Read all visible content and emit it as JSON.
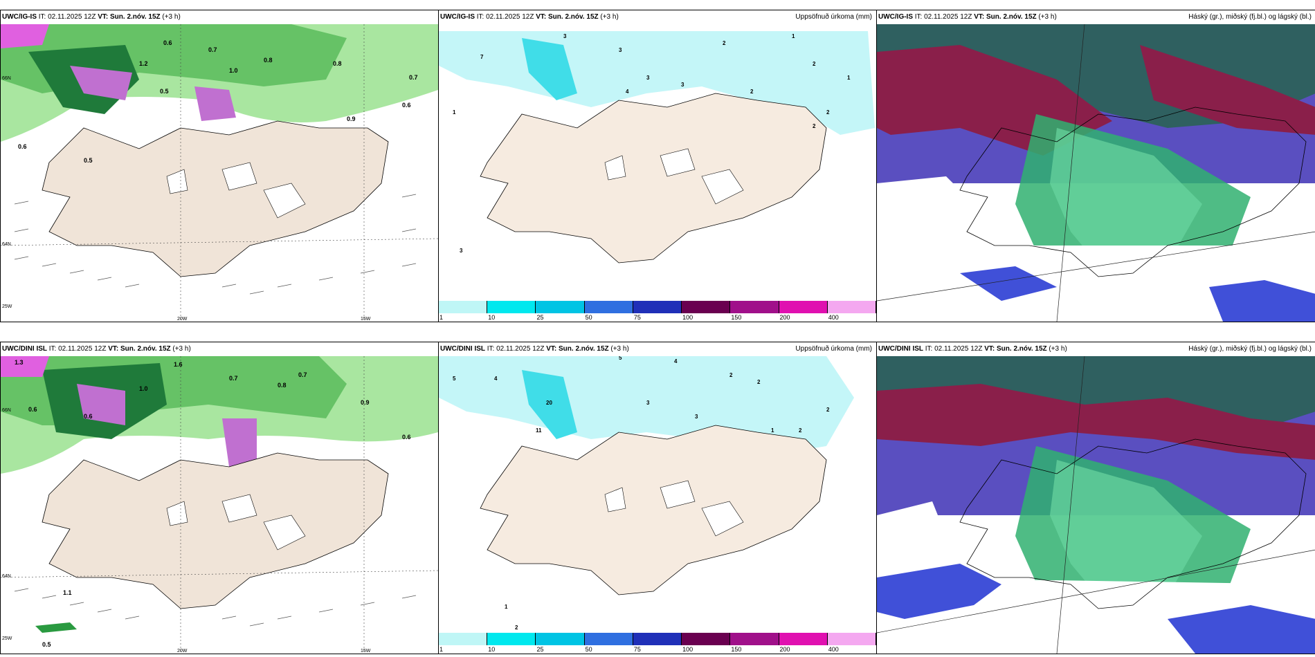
{
  "panels": {
    "p1": {
      "model": "UWC/IG-IS",
      "it": "IT: 02.11.2025 12Z",
      "vt_label": "VT:",
      "vt": "Sun. 2.nóv. 15Z",
      "lead": "(+3 h)",
      "right": ""
    },
    "p2": {
      "model": "UWC/IG-IS",
      "it": "IT: 02.11.2025 12Z",
      "vt_label": "VT:",
      "vt": "Sun. 2.nóv. 15Z",
      "lead": "(+3 h)",
      "right": "Uppsöfnuð úrkoma (mm)"
    },
    "p3": {
      "model": "UWC/IG-IS",
      "it": "IT: 02.11.2025 12Z",
      "vt_label": "VT:",
      "vt": "Sun. 2.nóv. 15Z",
      "lead": "(+3 h)",
      "right": "Háský (gr.), miðský (fj.bl.) og lágský (bl.)"
    },
    "p4": {
      "model": "UWC/DINI ISL",
      "it": "IT: 02.11.2025 12Z",
      "vt_label": "VT:",
      "vt": "Sun. 2.nóv. 15Z",
      "lead": "(+3 h)",
      "right": ""
    },
    "p5": {
      "model": "UWC/DINI ISL",
      "it": "IT: 02.11.2025 12Z",
      "vt_label": "VT:",
      "vt": "Sun. 2.nóv. 15Z",
      "lead": "(+3 h)",
      "right": "Uppsöfnuð úrkoma (mm)"
    },
    "p6": {
      "model": "UWC/DINI ISL",
      "it": "IT: 02.11.2025 12Z",
      "vt_label": "VT:",
      "vt": "Sun. 2.nóv. 15Z",
      "lead": "(+3 h)",
      "right": "Háský (gr.), miðský (fj.bl.) og lágský (bl.)"
    }
  },
  "grid_labels": {
    "lat66": "66N",
    "lat64": "64N",
    "lon20": "20W",
    "lon15": "15W",
    "lon25": "25W"
  },
  "precip_legend": {
    "labels": [
      "1",
      "10",
      "25",
      "50",
      "75",
      "100",
      "150",
      "200",
      "400"
    ],
    "colors": [
      "#bff6f6",
      "#00e8ee",
      "#00c4e4",
      "#2f6fe0",
      "#2030b8",
      "#6a0050",
      "#a0108a",
      "#e010b0",
      "#f4a8f0"
    ]
  },
  "numbers_top": [
    "0.6",
    "0.7",
    "0.8",
    "0.5",
    "0.9",
    "1.0",
    "1.2",
    "0.6",
    "0.7",
    "0.8",
    "0.5",
    "0.6"
  ],
  "numbers_bottom": [
    "1.3",
    "0.6",
    "0.7",
    "1.0",
    "1.6",
    "0.6",
    "0.7",
    "0.8",
    "0.9",
    "1.1",
    "0.5",
    "0.6"
  ],
  "precip_top": [
    "7",
    "3",
    "3",
    "3",
    "2",
    "2",
    "1",
    "2",
    "3",
    "4",
    "1",
    "1",
    "2",
    "2",
    "3"
  ],
  "precip_bottom": [
    "5",
    "4",
    "5",
    "4",
    "2",
    "3",
    "20",
    "11",
    "2",
    "3",
    "1",
    "2",
    "2",
    "1",
    "2"
  ]
}
